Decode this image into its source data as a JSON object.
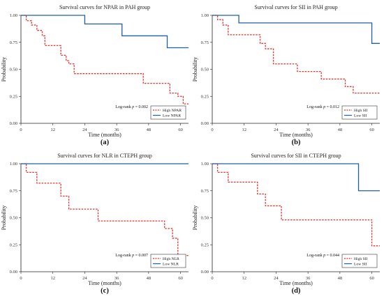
{
  "chart_data": [
    {
      "type": "line",
      "panel_label": "(a)",
      "title": "Survival curves for NPAR in PAH group",
      "xlabel": "Time (months)",
      "ylabel": "Probability",
      "xlim": [
        0,
        63
      ],
      "ylim": [
        0,
        1
      ],
      "xticks": [
        "0",
        "12",
        "24",
        "36",
        "48",
        "60"
      ],
      "yticks": [
        "0.00",
        "0.25",
        "0.50",
        "0.75",
        "1.00"
      ],
      "annotation": "Log-rank p = 0.002",
      "legend_position": "bottom-right",
      "series": [
        {
          "name": "High NPAR",
          "color": "#e8312a",
          "style": "dashed",
          "x": [
            0,
            2,
            4,
            6,
            8,
            9,
            15,
            17,
            18,
            20,
            23,
            41,
            46,
            51,
            53,
            56,
            59,
            61,
            63
          ],
          "y": [
            1.0,
            0.95,
            0.91,
            0.86,
            0.81,
            0.72,
            0.63,
            0.58,
            0.55,
            0.46,
            0.46,
            0.46,
            0.37,
            0.37,
            0.37,
            0.28,
            0.25,
            0.18,
            0.18
          ]
        },
        {
          "name": "Low NPAR",
          "color": "#1f5fa8",
          "style": "solid",
          "x": [
            0,
            24,
            38,
            55,
            63
          ],
          "y": [
            1.0,
            0.92,
            0.81,
            0.7,
            0.7
          ]
        }
      ]
    },
    {
      "type": "line",
      "panel_label": "(b)",
      "title": "Survival curves for SII in PAH group",
      "xlabel": "Time (months)",
      "ylabel": "Probability",
      "xlim": [
        0,
        63
      ],
      "ylim": [
        0,
        1
      ],
      "xticks": [
        "0",
        "12",
        "24",
        "36",
        "48",
        "60"
      ],
      "yticks": [
        "0.00",
        "0.25",
        "0.50",
        "0.75",
        "1.00"
      ],
      "annotation": "Log-rank p = 0.012",
      "legend_position": "bottom-right",
      "series": [
        {
          "name": "High SII",
          "color": "#e8312a",
          "style": "dashed",
          "x": [
            0,
            2,
            4,
            6,
            18,
            20,
            23,
            32,
            41,
            50,
            53,
            63
          ],
          "y": [
            1.0,
            0.96,
            0.91,
            0.82,
            0.74,
            0.69,
            0.55,
            0.48,
            0.41,
            0.34,
            0.28,
            0.28
          ]
        },
        {
          "name": "Low SII",
          "color": "#1f5fa8",
          "style": "solid",
          "x": [
            0,
            10,
            60,
            63
          ],
          "y": [
            1.0,
            0.93,
            0.74,
            0.74
          ]
        }
      ]
    },
    {
      "type": "line",
      "panel_label": "(c)",
      "title": "Survival curves for NLR in CTEPH group",
      "xlabel": "Time (months)",
      "ylabel": "Probability",
      "xlim": [
        0,
        63
      ],
      "ylim": [
        0,
        1
      ],
      "xticks": [
        "0",
        "12",
        "24",
        "36",
        "48",
        "60"
      ],
      "yticks": [
        "0.00",
        "0.25",
        "0.50",
        "0.75",
        "1.00"
      ],
      "annotation": "Log-rank p = 0.007",
      "legend_position": "bottom-right",
      "series": [
        {
          "name": "High NLR",
          "color": "#e8312a",
          "style": "dashed",
          "x": [
            0,
            2,
            6,
            15,
            18,
            29,
            54,
            57,
            59,
            63
          ],
          "y": [
            1.0,
            0.92,
            0.82,
            0.7,
            0.58,
            0.47,
            0.4,
            0.31,
            0.15,
            0.15
          ]
        },
        {
          "name": "Low NLR",
          "color": "#1f5fa8",
          "style": "solid",
          "x": [
            0,
            63
          ],
          "y": [
            1.0,
            1.0
          ]
        }
      ]
    },
    {
      "type": "line",
      "panel_label": "(d)",
      "title": "Survival curves for SII in CTEPH group",
      "xlabel": "Time (months)",
      "ylabel": "Probability",
      "xlim": [
        0,
        63
      ],
      "ylim": [
        0,
        1
      ],
      "xticks": [
        "0",
        "12",
        "24",
        "36",
        "48",
        "60"
      ],
      "yticks": [
        "0.00",
        "0.25",
        "0.50",
        "0.75",
        "1.00"
      ],
      "annotation": "Log-rank p = 0.044",
      "legend_position": "bottom-right",
      "series": [
        {
          "name": "High SII",
          "color": "#e8312a",
          "style": "dashed",
          "x": [
            0,
            2,
            6,
            17,
            20,
            26,
            60,
            63
          ],
          "y": [
            1.0,
            0.92,
            0.83,
            0.72,
            0.61,
            0.48,
            0.24,
            0.24
          ]
        },
        {
          "name": "Low SII",
          "color": "#1f5fa8",
          "style": "solid",
          "x": [
            0,
            55,
            63
          ],
          "y": [
            1.0,
            0.75,
            0.75
          ]
        }
      ]
    }
  ]
}
